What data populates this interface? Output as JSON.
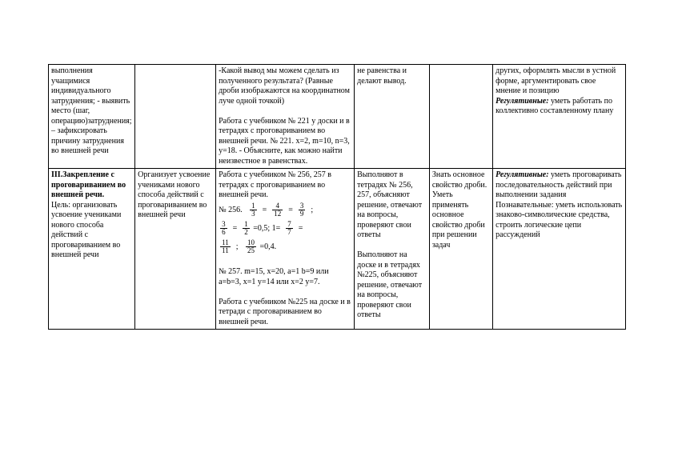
{
  "page": {
    "background": "#ffffff",
    "text_color": "#000000",
    "font_family": "Times New Roman",
    "base_fontsize": 10
  },
  "table": {
    "columns": [
      "col1",
      "col2",
      "col3",
      "col4",
      "col5",
      "col6"
    ],
    "rows": [
      {
        "c1": "выполнения учащимися индивидуального затруднения;\n- выявить место (шаг, операцию)затруднения;\n– зафиксировать причину затруднения во внешней речи",
        "c2": "",
        "c3a": "-Какой вывод мы можем сделать из полученного результата? (Равные дроби изображаются на координатном луче одной точкой)",
        "c3b": "Работа с учебником  № 221 у доски и в тетрадях с проговариванием во внешней речи.\n№ 221. x=2, m=10, n=3, y=18.\n- Объясните, как можно найти неизвестное в равенствах.",
        "c4": "не равенства и делают вывод.",
        "c5": "",
        "c6a": "других, оформлять мысли в устной форме, аргументировать свое мнение и позицию",
        "c6b_label": "Регулятивные:",
        "c6b": " уметь работать по коллективно составленному плану"
      },
      {
        "c1a": "III.Закрепление с проговариванием во внешней речи.",
        "c1b": "Цель: организовать усвоение учениками нового способа действий с проговариванием во внешней  речи",
        "c2": "Организует усвоение учениками нового способа действий с проговариванием во внешней речи",
        "c3_intro": "Работа с учебником  № 256, 257 в тетрадях с проговариванием во внешней речи.",
        "c3_num_label": "№ 256.",
        "fracs": {
          "f1n": "1",
          "f1d": "3",
          "f2n": "4",
          "f2d": "12",
          "f3n": "3",
          "f3d": "9",
          "f4n": "3",
          "f4d": "6",
          "f5n": "1",
          "f5d": "2",
          "eq05": " =0,5;  1=",
          "f6n": "7",
          "f6d": "7",
          "f7n": "11",
          "f7d": "11",
          "f8n": "10",
          "f8d": "25",
          "eq04": " =0,4."
        },
        "c3_mid": " № 257. m=15, x=20, a=1 b=9 или a=b=3, x=1 y=14 или x=2 y=7.",
        "c3_end": "Работа с учебником  №225 на доске и в тетради с проговариванием во внешней речи.",
        "c4a": "Выполняют  в тетрадях № 256, 257, объясняют решение, отвечают на вопросы, проверяют свои ответы",
        "c4b": "Выполняют на доске и в тетрадях №225, объясняют решение, отвечают на вопросы, проверяют свои ответы",
        "c5": "Знать основное свойство дроби. Уметь применять основное свойство дроби при решении задач",
        "c6a_label": "Регулятивные:",
        "c6a": " уметь проговаривать последовательность действий при выполнении задания",
        "c6b": "Познавательные: уметь использовать знаково-символические средства, строить логические цепи рассуждений"
      }
    ]
  }
}
